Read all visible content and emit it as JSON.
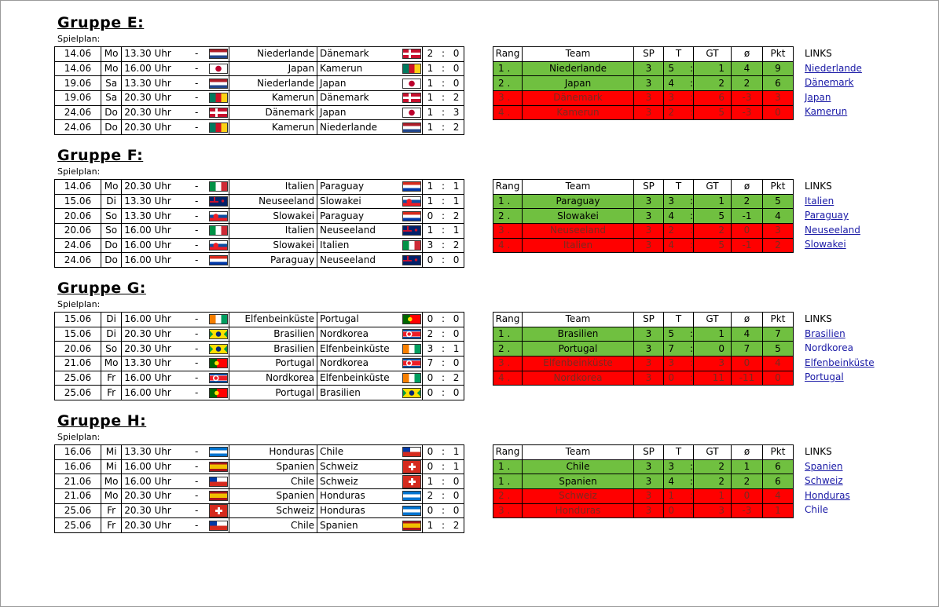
{
  "labels": {
    "spielplan": "Spielplan:",
    "links": "LINKS",
    "uhr_sep": "-",
    "score_sep": ":"
  },
  "standings_headers": [
    "Rang",
    "Team",
    "SP",
    "T",
    "GT",
    "ø",
    "Pkt"
  ],
  "groups": [
    {
      "title": "Gruppe E:",
      "matches": [
        {
          "date": "14.06",
          "day": "Mo",
          "time": "13.30 Uhr",
          "home": "Niederlande",
          "home_flag": "netherlands-flag",
          "away": "Dänemark",
          "away_flag": "denmark-flag",
          "hg": "2",
          "ag": "0"
        },
        {
          "date": "14.06",
          "day": "Mo",
          "time": "16.00 Uhr",
          "home": "Japan",
          "home_flag": "japan-flag",
          "away": "Kamerun",
          "away_flag": "cameroon-flag",
          "hg": "1",
          "ag": "0"
        },
        {
          "date": "19.06",
          "day": "Sa",
          "time": "13.30 Uhr",
          "home": "Niederlande",
          "home_flag": "netherlands-flag",
          "away": "Japan",
          "away_flag": "japan-flag",
          "hg": "1",
          "ag": "0"
        },
        {
          "date": "19.06",
          "day": "Sa",
          "time": "20.30 Uhr",
          "home": "Kamerun",
          "home_flag": "cameroon-flag",
          "away": "Dänemark",
          "away_flag": "denmark-flag",
          "hg": "1",
          "ag": "2"
        },
        {
          "date": "24.06",
          "day": "Do",
          "time": "20.30 Uhr",
          "home": "Dänemark",
          "home_flag": "denmark-flag",
          "away": "Japan",
          "away_flag": "japan-flag",
          "hg": "1",
          "ag": "3"
        },
        {
          "date": "24.06",
          "day": "Do",
          "time": "20.30 Uhr",
          "home": "Kamerun",
          "home_flag": "cameroon-flag",
          "away": "Niederlande",
          "away_flag": "netherlands-flag",
          "hg": "1",
          "ag": "2"
        }
      ],
      "standings": [
        {
          "rang": "1",
          "team": "Niederlande",
          "sp": "3",
          "t": "5",
          "gt": "1",
          "diff": "4",
          "pkt": "9",
          "status": "qualified"
        },
        {
          "rang": "2",
          "team": "Japan",
          "sp": "3",
          "t": "4",
          "gt": "2",
          "diff": "2",
          "pkt": "6",
          "status": "qualified"
        },
        {
          "rang": "3",
          "team": "Dänemark",
          "sp": "3",
          "t": "3",
          "gt": "6",
          "diff": "-3",
          "pkt": "3",
          "status": "out"
        },
        {
          "rang": "4",
          "team": "Kamerun",
          "sp": "3",
          "t": "2",
          "gt": "5",
          "diff": "-3",
          "pkt": "0",
          "status": "out"
        }
      ],
      "links": [
        {
          "text": "Niederlande",
          "link": true
        },
        {
          "text": "Dänemark",
          "link": true
        },
        {
          "text": "Japan",
          "link": true
        },
        {
          "text": "Kamerun",
          "link": true
        }
      ]
    },
    {
      "title": "Gruppe F:",
      "matches": [
        {
          "date": "14.06",
          "day": "Mo",
          "time": "20.30 Uhr",
          "home": "Italien",
          "home_flag": "italy-flag",
          "away": "Paraguay",
          "away_flag": "paraguay-flag",
          "hg": "1",
          "ag": "1"
        },
        {
          "date": "15.06",
          "day": "Di",
          "time": "13.30 Uhr",
          "home": "Neuseeland",
          "home_flag": "new-zealand-flag",
          "away": "Slowakei",
          "away_flag": "slovakia-flag",
          "hg": "1",
          "ag": "1"
        },
        {
          "date": "20.06",
          "day": "So",
          "time": "13.30 Uhr",
          "home": "Slowakei",
          "home_flag": "slovakia-flag",
          "away": "Paraguay",
          "away_flag": "paraguay-flag",
          "hg": "0",
          "ag": "2"
        },
        {
          "date": "20.06",
          "day": "So",
          "time": "16.00 Uhr",
          "home": "Italien",
          "home_flag": "italy-flag",
          "away": "Neuseeland",
          "away_flag": "new-zealand-flag",
          "hg": "1",
          "ag": "1"
        },
        {
          "date": "24.06",
          "day": "Do",
          "time": "16.00 Uhr",
          "home": "Slowakei",
          "home_flag": "slovakia-flag",
          "away": "Italien",
          "away_flag": "italy-flag",
          "hg": "3",
          "ag": "2"
        },
        {
          "date": "24.06",
          "day": "Do",
          "time": "16.00 Uhr",
          "home": "Paraguay",
          "home_flag": "paraguay-flag",
          "away": "Neuseeland",
          "away_flag": "new-zealand-flag",
          "hg": "0",
          "ag": "0"
        }
      ],
      "standings": [
        {
          "rang": "1",
          "team": "Paraguay",
          "sp": "3",
          "t": "3",
          "gt": "1",
          "diff": "2",
          "pkt": "5",
          "status": "qualified"
        },
        {
          "rang": "2",
          "team": "Slowakei",
          "sp": "3",
          "t": "4",
          "gt": "5",
          "diff": "-1",
          "pkt": "4",
          "status": "qualified"
        },
        {
          "rang": "3",
          "team": "Neuseeland",
          "sp": "3",
          "t": "2",
          "gt": "2",
          "diff": "0",
          "pkt": "3",
          "status": "out"
        },
        {
          "rang": "4",
          "team": "Italien",
          "sp": "3",
          "t": "4",
          "gt": "5",
          "diff": "-1",
          "pkt": "2",
          "status": "out"
        }
      ],
      "links": [
        {
          "text": "Italien",
          "link": true
        },
        {
          "text": "Paraguay",
          "link": true
        },
        {
          "text": "Neuseeland",
          "link": true
        },
        {
          "text": "Slowakei",
          "link": true
        }
      ]
    },
    {
      "title": "Gruppe G:",
      "matches": [
        {
          "date": "15.06",
          "day": "Di",
          "time": "16.00 Uhr",
          "home": "Elfenbeinküste",
          "home_flag": "ivory-coast-flag",
          "away": "Portugal",
          "away_flag": "portugal-flag",
          "hg": "0",
          "ag": "0"
        },
        {
          "date": "15.06",
          "day": "Di",
          "time": "20.30 Uhr",
          "home": "Brasilien",
          "home_flag": "brazil-flag",
          "away": "Nordkorea",
          "away_flag": "north-korea-flag",
          "hg": "2",
          "ag": "0"
        },
        {
          "date": "20.06",
          "day": "So",
          "time": "20.30 Uhr",
          "home": "Brasilien",
          "home_flag": "brazil-flag",
          "away": "Elfenbeinküste",
          "away_flag": "ivory-coast-flag",
          "hg": "3",
          "ag": "1"
        },
        {
          "date": "21.06",
          "day": "Mo",
          "time": "13.30 Uhr",
          "home": "Portugal",
          "home_flag": "portugal-flag",
          "away": "Nordkorea",
          "away_flag": "north-korea-flag",
          "hg": "7",
          "ag": "0"
        },
        {
          "date": "25.06",
          "day": "Fr",
          "time": "16.00 Uhr",
          "home": "Nordkorea",
          "home_flag": "north-korea-flag",
          "away": "Elfenbeinküste",
          "away_flag": "ivory-coast-flag",
          "hg": "0",
          "ag": "2"
        },
        {
          "date": "25.06",
          "day": "Fr",
          "time": "16.00 Uhr",
          "home": "Portugal",
          "home_flag": "portugal-flag",
          "away": "Brasilien",
          "away_flag": "brazil-flag",
          "hg": "0",
          "ag": "0"
        }
      ],
      "standings": [
        {
          "rang": "1",
          "team": "Brasilien",
          "sp": "3",
          "t": "5",
          "gt": "1",
          "diff": "4",
          "pkt": "7",
          "status": "qualified"
        },
        {
          "rang": "2",
          "team": "Portugal",
          "sp": "3",
          "t": "7",
          "gt": "0",
          "diff": "7",
          "pkt": "5",
          "status": "qualified"
        },
        {
          "rang": "3",
          "team": "Elfenbeinküste",
          "sp": "3",
          "t": "3",
          "gt": "3",
          "diff": "0",
          "pkt": "4",
          "status": "out"
        },
        {
          "rang": "4",
          "team": "Nordkorea",
          "sp": "3",
          "t": "0",
          "gt": "11",
          "diff": "-11",
          "pkt": "0",
          "status": "out"
        }
      ],
      "links": [
        {
          "text": "Brasilien",
          "link": true
        },
        {
          "text": "Nordkorea",
          "link": false
        },
        {
          "text": "Elfenbeinküste",
          "link": true
        },
        {
          "text": "Portugal",
          "link": true
        }
      ]
    },
    {
      "title": "Gruppe H:",
      "matches": [
        {
          "date": "16.06",
          "day": "Mi",
          "time": "13.30 Uhr",
          "home": "Honduras",
          "home_flag": "honduras-flag",
          "away": "Chile",
          "away_flag": "chile-flag",
          "hg": "0",
          "ag": "1"
        },
        {
          "date": "16.06",
          "day": "Mi",
          "time": "16.00 Uhr",
          "home": "Spanien",
          "home_flag": "spain-flag",
          "away": "Schweiz",
          "away_flag": "switzerland-flag",
          "hg": "0",
          "ag": "1"
        },
        {
          "date": "21.06",
          "day": "Mo",
          "time": "16.00 Uhr",
          "home": "Chile",
          "home_flag": "chile-flag",
          "away": "Schweiz",
          "away_flag": "switzerland-flag",
          "hg": "1",
          "ag": "0"
        },
        {
          "date": "21.06",
          "day": "Mo",
          "time": "20.30 Uhr",
          "home": "Spanien",
          "home_flag": "spain-flag",
          "away": "Honduras",
          "away_flag": "honduras-flag",
          "hg": "2",
          "ag": "0"
        },
        {
          "date": "25.06",
          "day": "Fr",
          "time": "20.30 Uhr",
          "home": "Schweiz",
          "home_flag": "switzerland-flag",
          "away": "Honduras",
          "away_flag": "honduras-flag",
          "hg": "0",
          "ag": "0"
        },
        {
          "date": "25.06",
          "day": "Fr",
          "time": "20.30 Uhr",
          "home": "Chile",
          "home_flag": "chile-flag",
          "away": "Spanien",
          "away_flag": "spain-flag",
          "hg": "1",
          "ag": "2"
        }
      ],
      "standings": [
        {
          "rang": "1",
          "team": "Chile",
          "sp": "3",
          "t": "3",
          "gt": "2",
          "diff": "1",
          "pkt": "6",
          "status": "qualified"
        },
        {
          "rang": "1",
          "team": "Spanien",
          "sp": "3",
          "t": "4",
          "gt": "2",
          "diff": "2",
          "pkt": "6",
          "status": "qualified"
        },
        {
          "rang": "2",
          "team": "Schweiz",
          "sp": "3",
          "t": "1",
          "gt": "1",
          "diff": "0",
          "pkt": "4",
          "status": "out"
        },
        {
          "rang": "3",
          "team": "Honduras",
          "sp": "3",
          "t": "0",
          "gt": "3",
          "diff": "-3",
          "pkt": "1",
          "status": "out"
        }
      ],
      "links": [
        {
          "text": "Spanien",
          "link": true
        },
        {
          "text": "Schweiz",
          "link": true
        },
        {
          "text": "Honduras",
          "link": true
        },
        {
          "text": "Chile",
          "link": false
        }
      ]
    }
  ]
}
